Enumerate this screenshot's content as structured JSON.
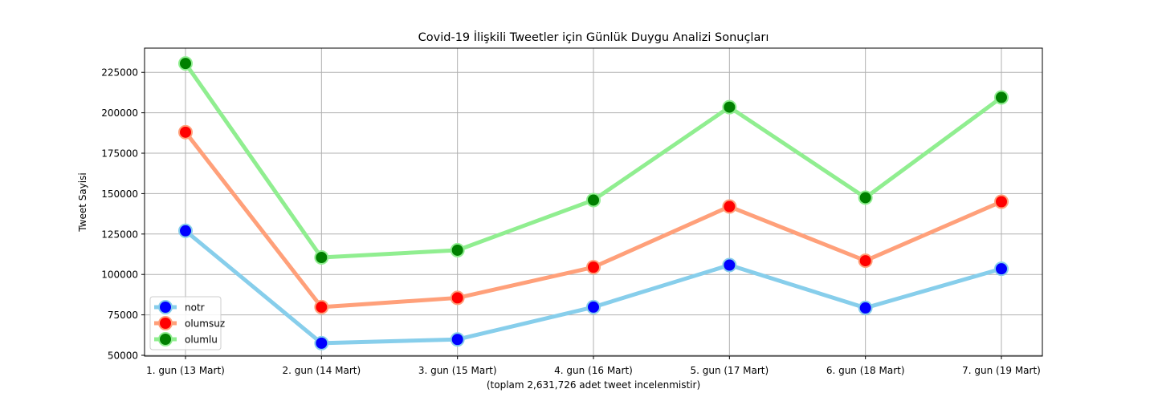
{
  "chart_data": {
    "type": "line",
    "title": "Covid-19 İlişkili Tweetler için Günlük Duygu Analizi Sonuçları",
    "xlabel": "(toplam 2,631,726 adet tweet incelenmistir)",
    "ylabel": "Tweet Sayisi",
    "categories": [
      "1. gun (13 Mart)",
      "2. gun (14 Mart)",
      "3. gun (15 Mart)",
      "4. gun (16 Mart)",
      "5. gun (17 Mart)",
      "6. gun (18 Mart)",
      "7. gun (19 Mart)"
    ],
    "ylim": [
      49500,
      240000
    ],
    "yticks": [
      50000,
      75000,
      100000,
      125000,
      150000,
      175000,
      200000,
      225000
    ],
    "grid": true,
    "legend_position": "lower-left",
    "series": [
      {
        "name": "notr",
        "values": [
          127000,
          57500,
          59800,
          79800,
          105800,
          79300,
          103500
        ],
        "line_color": "#87ceeb",
        "marker_color": "#0000ff"
      },
      {
        "name": "olumsuz",
        "values": [
          188000,
          79800,
          85500,
          104500,
          142000,
          108500,
          145000
        ],
        "line_color": "#ffa07a",
        "marker_color": "#ff0000"
      },
      {
        "name": "olumlu",
        "values": [
          230500,
          110500,
          115000,
          146000,
          203500,
          147500,
          209500
        ],
        "line_color": "#90ee90",
        "marker_color": "#008000"
      }
    ]
  }
}
